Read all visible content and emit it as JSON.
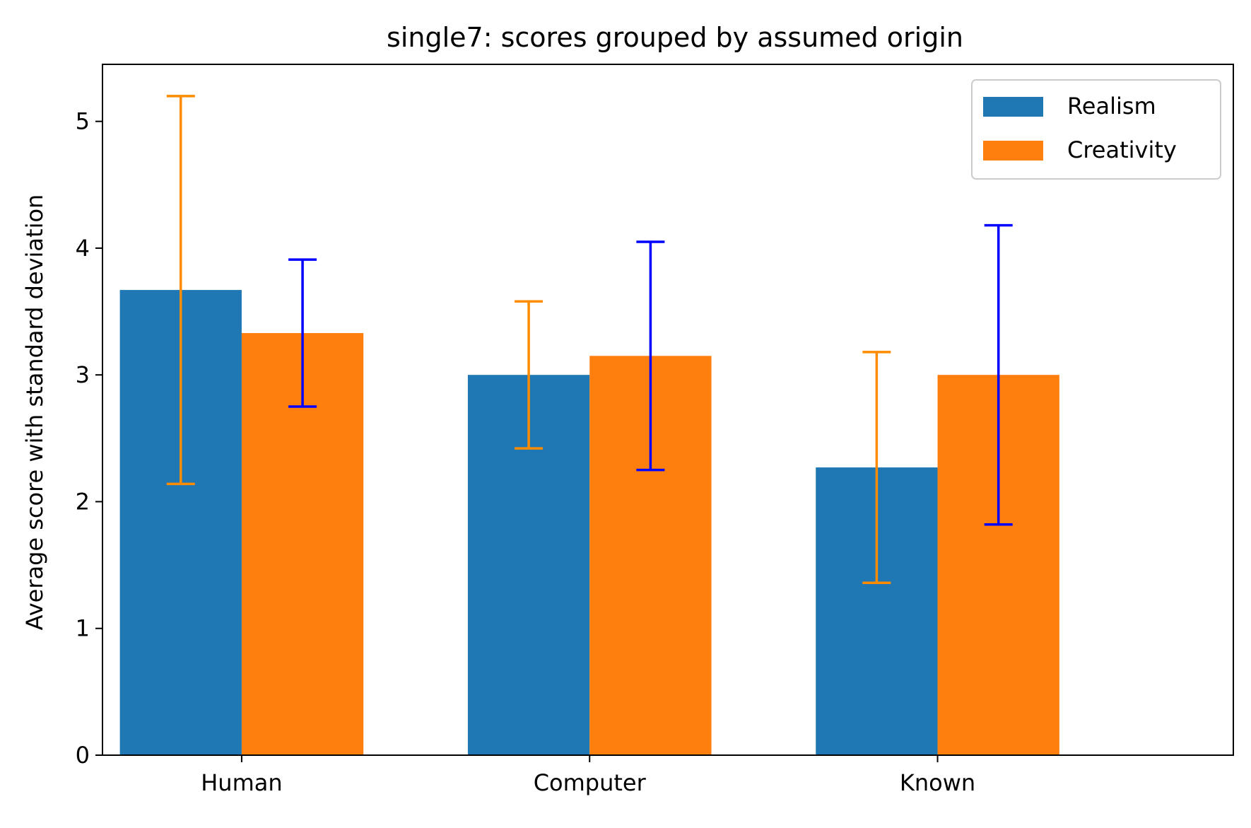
{
  "chart_data": {
    "type": "bar",
    "title": "single7: scores grouped by assumed origin",
    "xlabel": "",
    "ylabel": "Average score with standard deviation",
    "categories": [
      "Human",
      "Computer",
      "Known"
    ],
    "ylim": [
      0,
      5.45
    ],
    "yticks": [
      0,
      1,
      2,
      3,
      4,
      5
    ],
    "grid": false,
    "legend_position": "top-right",
    "series": [
      {
        "name": "Realism",
        "color": "#1f77b4",
        "error_color": "#ff8c00",
        "values": [
          3.67,
          3.0,
          2.27
        ],
        "std": [
          1.53,
          0.58,
          0.91
        ]
      },
      {
        "name": "Creativity",
        "color": "#ff7f0e",
        "error_color": "#0000ff",
        "values": [
          3.33,
          3.15,
          3.0
        ],
        "std": [
          0.58,
          0.9,
          1.18
        ]
      }
    ]
  }
}
